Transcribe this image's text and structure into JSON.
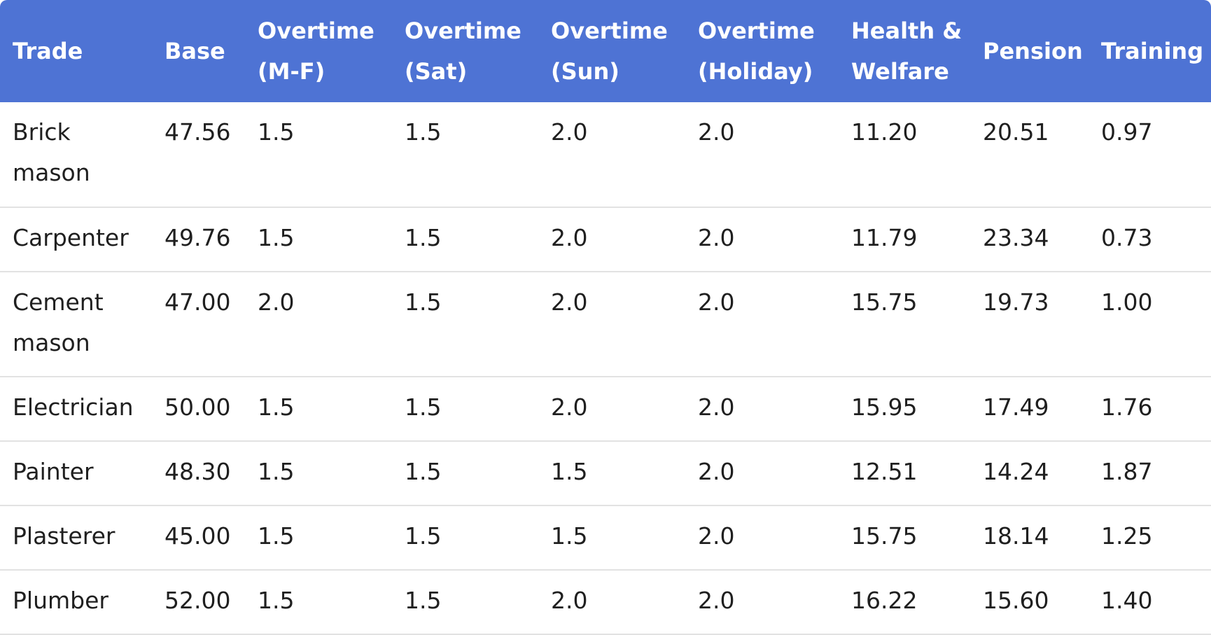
{
  "table": {
    "headers": [
      "Trade",
      "Base",
      "Overtime (M-F)",
      "Overtime (Sat)",
      "Overtime (Sun)",
      "Overtime (Holiday)",
      "Health & Welfare",
      "Pension",
      "Training"
    ],
    "rows": [
      [
        "Brick mason",
        "47.56",
        "1.5",
        "1.5",
        "2.0",
        "2.0",
        "11.20",
        "20.51",
        "0.97"
      ],
      [
        "Carpenter",
        "49.76",
        "1.5",
        "1.5",
        "2.0",
        "2.0",
        "11.79",
        "23.34",
        "0.73"
      ],
      [
        "Cement mason",
        "47.00",
        "2.0",
        "1.5",
        "2.0",
        "2.0",
        "15.75",
        "19.73",
        "1.00"
      ],
      [
        "Electrician",
        "50.00",
        "1.5",
        "1.5",
        "2.0",
        "2.0",
        "15.95",
        "17.49",
        "1.76"
      ],
      [
        "Painter",
        "48.30",
        "1.5",
        "1.5",
        "1.5",
        "2.0",
        "12.51",
        "14.24",
        "1.87"
      ],
      [
        "Plasterer",
        "45.00",
        "1.5",
        "1.5",
        "1.5",
        "2.0",
        "15.75",
        "18.14",
        "1.25"
      ],
      [
        "Plumber",
        "52.00",
        "1.5",
        "1.5",
        "2.0",
        "2.0",
        "16.22",
        "15.60",
        "1.40"
      ]
    ]
  },
  "colors": {
    "header_background": "#4e73d4",
    "header_text": "#ffffff",
    "row_divider": "#e2e2e2"
  }
}
